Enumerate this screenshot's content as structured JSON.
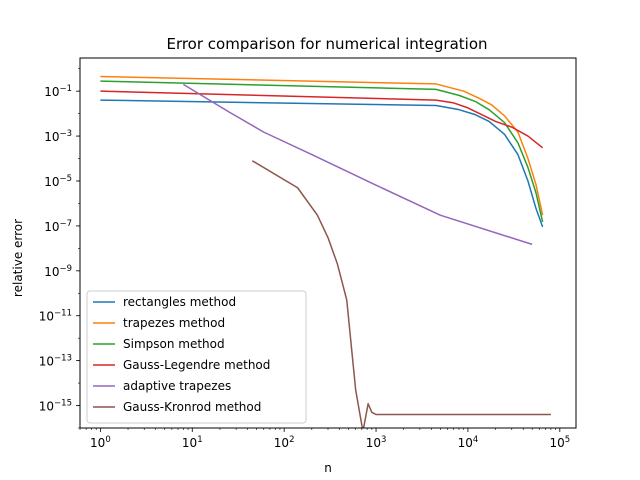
{
  "chart_data": {
    "type": "line",
    "title": "Error comparison for numerical integration",
    "xlabel": "n",
    "ylabel": "relative error",
    "xscale": "log",
    "yscale": "log",
    "xlim": [
      0.6,
      150000
    ],
    "ylim": [
      1e-16,
      3
    ],
    "x_ticks": [
      {
        "value": 1,
        "base": "10",
        "exp": "0"
      },
      {
        "value": 10,
        "base": "10",
        "exp": "1"
      },
      {
        "value": 100,
        "base": "10",
        "exp": "2"
      },
      {
        "value": 1000,
        "base": "10",
        "exp": "3"
      },
      {
        "value": 10000,
        "base": "10",
        "exp": "4"
      },
      {
        "value": 100000,
        "base": "10",
        "exp": "5"
      }
    ],
    "y_ticks": [
      {
        "value": 0.1,
        "base": "10",
        "exp": "−1"
      },
      {
        "value": 0.001,
        "base": "10",
        "exp": "−3"
      },
      {
        "value": 1e-05,
        "base": "10",
        "exp": "−5"
      },
      {
        "value": 1e-07,
        "base": "10",
        "exp": "−7"
      },
      {
        "value": 1e-09,
        "base": "10",
        "exp": "−9"
      },
      {
        "value": 1e-11,
        "base": "10",
        "exp": "−11"
      },
      {
        "value": 1e-13,
        "base": "10",
        "exp": "−13"
      },
      {
        "value": 1e-15,
        "base": "10",
        "exp": "−15"
      }
    ],
    "grid": false,
    "legend_position": "lower-left",
    "series": [
      {
        "name": "rectangles method",
        "color": "#1f77b4",
        "x": [
          1,
          4500,
          8000,
          12000,
          17000,
          25000,
          35000,
          45000,
          55000,
          65000
        ],
        "y": [
          0.04,
          0.023,
          0.015,
          0.009,
          0.0045,
          0.0012,
          0.00015,
          1e-05,
          6e-07,
          9e-08
        ]
      },
      {
        "name": "trapezes method",
        "color": "#ff7f0e",
        "x": [
          1,
          4500,
          9000,
          13000,
          18000,
          25000,
          35000,
          45000,
          55000,
          65000
        ],
        "y": [
          0.45,
          0.21,
          0.1,
          0.05,
          0.025,
          0.008,
          0.0015,
          0.0001,
          7e-06,
          3e-07
        ]
      },
      {
        "name": "Simpson method",
        "color": "#2ca02c",
        "x": [
          1,
          4500,
          8000,
          12000,
          17000,
          25000,
          35000,
          45000,
          55000,
          65000
        ],
        "y": [
          0.28,
          0.12,
          0.065,
          0.035,
          0.015,
          0.004,
          0.0005,
          4e-05,
          3e-06,
          1.5e-07
        ]
      },
      {
        "name": "Gauss-Legendre method",
        "color": "#d62728",
        "x": [
          1,
          4500,
          7000,
          10000,
          15000,
          20000,
          30000,
          45000,
          65000
        ],
        "y": [
          0.1,
          0.04,
          0.03,
          0.018,
          0.008,
          0.0045,
          0.0025,
          0.001,
          0.0003
        ]
      },
      {
        "name": "adaptive trapezes",
        "color": "#9467bd",
        "x": [
          8,
          25,
          60,
          200,
          1000,
          5000,
          50000
        ],
        "y": [
          0.2,
          0.012,
          0.0015,
          0.00015,
          6.5e-06,
          3e-07,
          1.5e-08
        ]
      },
      {
        "name": "Gauss-Kronrod method",
        "color": "#8c564b",
        "x": [
          45,
          140,
          230,
          300,
          380,
          480,
          600,
          720,
          820,
          900,
          1000,
          5000,
          80000
        ],
        "y": [
          8e-05,
          5e-06,
          3e-07,
          3e-08,
          2e-09,
          5e-11,
          5e-15,
          7e-17,
          1.2e-15,
          5e-16,
          4e-16,
          4e-16,
          4e-16
        ]
      }
    ]
  }
}
